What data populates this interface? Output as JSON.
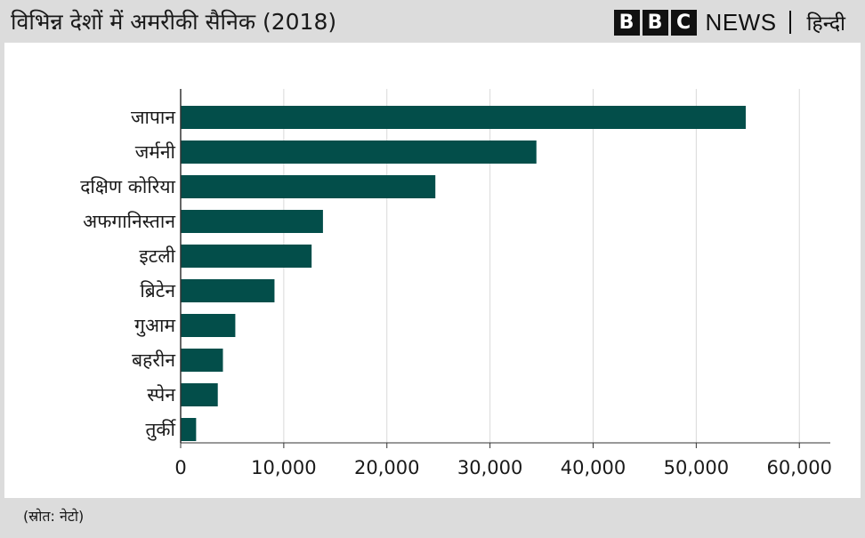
{
  "header": {
    "title": "विभिन्न देशों में अमरीकी सैनिक (2018)",
    "brand_letters": [
      "B",
      "B",
      "C"
    ],
    "brand_news": "NEWS",
    "brand_lang": "हिन्दी"
  },
  "footer": {
    "source": "(स्रोत: नेटो)"
  },
  "colors": {
    "bar": "#034e4a",
    "grid": "#d9d9d9",
    "band": "#dcdcdc"
  },
  "chart_data": {
    "type": "bar",
    "orientation": "horizontal",
    "categories": [
      "जापान",
      "जर्मनी",
      "दक्षिण कोरिया",
      "अफगानिस्तान",
      "इटली",
      "ब्रिटेन",
      "गुआम",
      "बहरीन",
      "स्पेन",
      "तुर्की"
    ],
    "values": [
      54800,
      34500,
      24700,
      13800,
      12700,
      9100,
      5300,
      4100,
      3600,
      1500
    ],
    "xlim": [
      0,
      63000
    ],
    "xticks": [
      0,
      10000,
      20000,
      30000,
      40000,
      50000,
      60000
    ],
    "xtick_labels": [
      "0",
      "10,000",
      "20,000",
      "30,000",
      "40,000",
      "50,000",
      "60,000"
    ],
    "grid": true
  }
}
